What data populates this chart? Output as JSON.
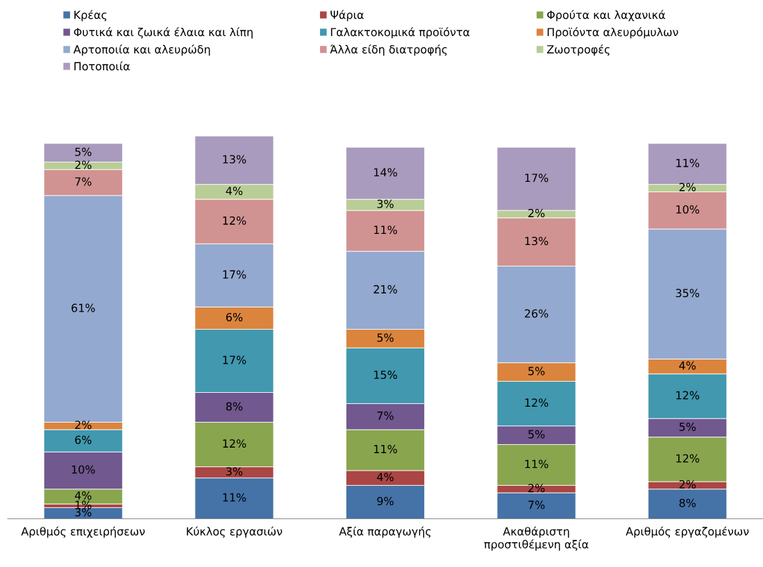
{
  "chart_data": {
    "type": "bar",
    "stacked": true,
    "relative": false,
    "legend": "top",
    "grid": false,
    "categories": [
      "Αριθμός επιχειρήσεων",
      "Κύκλος εργασιών",
      "Αξία παραγωγής",
      "Ακαθάριστη\nπροστιθέμενη αξία",
      "Αριθμός εργαζομένων"
    ],
    "series": [
      {
        "name": "Κρέας",
        "color": "#4572a7",
        "values": [
          3,
          11,
          9,
          7,
          8
        ],
        "value_labels": [
          "3%",
          "11%",
          "9%",
          "7%",
          "8%"
        ]
      },
      {
        "name": "Ψάρια",
        "color": "#aa4643",
        "values": [
          1,
          3,
          4,
          2,
          2
        ],
        "value_labels": [
          "1%",
          "3%",
          "4%",
          "2%",
          "2%"
        ]
      },
      {
        "name": "Φρούτα και λαχανικά",
        "color": "#89a54e",
        "values": [
          4,
          12,
          11,
          11,
          12
        ],
        "value_labels": [
          "4%",
          "12%",
          "11%",
          "11%",
          "12%"
        ]
      },
      {
        "name": "Φυτικά και ζωικά έλαια και λίπη",
        "color": "#71588f",
        "values": [
          10,
          8,
          7,
          5,
          5
        ],
        "value_labels": [
          "10%",
          "8%",
          "7%",
          "5%",
          "5%"
        ]
      },
      {
        "name": "Γαλακτοκομικά προϊόντα",
        "color": "#4198af",
        "values": [
          6,
          17,
          15,
          12,
          12
        ],
        "value_labels": [
          "6%",
          "17%",
          "15%",
          "12%",
          "12%"
        ]
      },
      {
        "name": "Προϊόντα αλευρόμυλων",
        "color": "#db843d",
        "values": [
          2,
          6,
          5,
          5,
          4
        ],
        "value_labels": [
          "2%",
          "6%",
          "5%",
          "5%",
          "4%"
        ]
      },
      {
        "name": "Αρτοποιία και αλευρώδη",
        "color": "#93a9cf",
        "values": [
          61,
          17,
          21,
          26,
          35
        ],
        "value_labels": [
          "61%",
          "17%",
          "21%",
          "26%",
          "35%"
        ]
      },
      {
        "name": "Άλλα είδη διατροφής",
        "color": "#d19392",
        "values": [
          7,
          12,
          11,
          13,
          10
        ],
        "value_labels": [
          "7%",
          "12%",
          "11%",
          "13%",
          "10%"
        ]
      },
      {
        "name": "Ζωοτροφές",
        "color": "#b9cd96",
        "values": [
          2,
          4,
          3,
          2,
          2
        ],
        "value_labels": [
          "2%",
          "4%",
          "3%",
          "2%",
          "2%"
        ]
      },
      {
        "name": "Ποτοποιία",
        "color": "#a99bbd",
        "values": [
          5,
          13,
          14,
          17,
          11
        ],
        "value_labels": [
          "5%",
          "13%",
          "14%",
          "17%",
          "11%"
        ]
      }
    ]
  }
}
